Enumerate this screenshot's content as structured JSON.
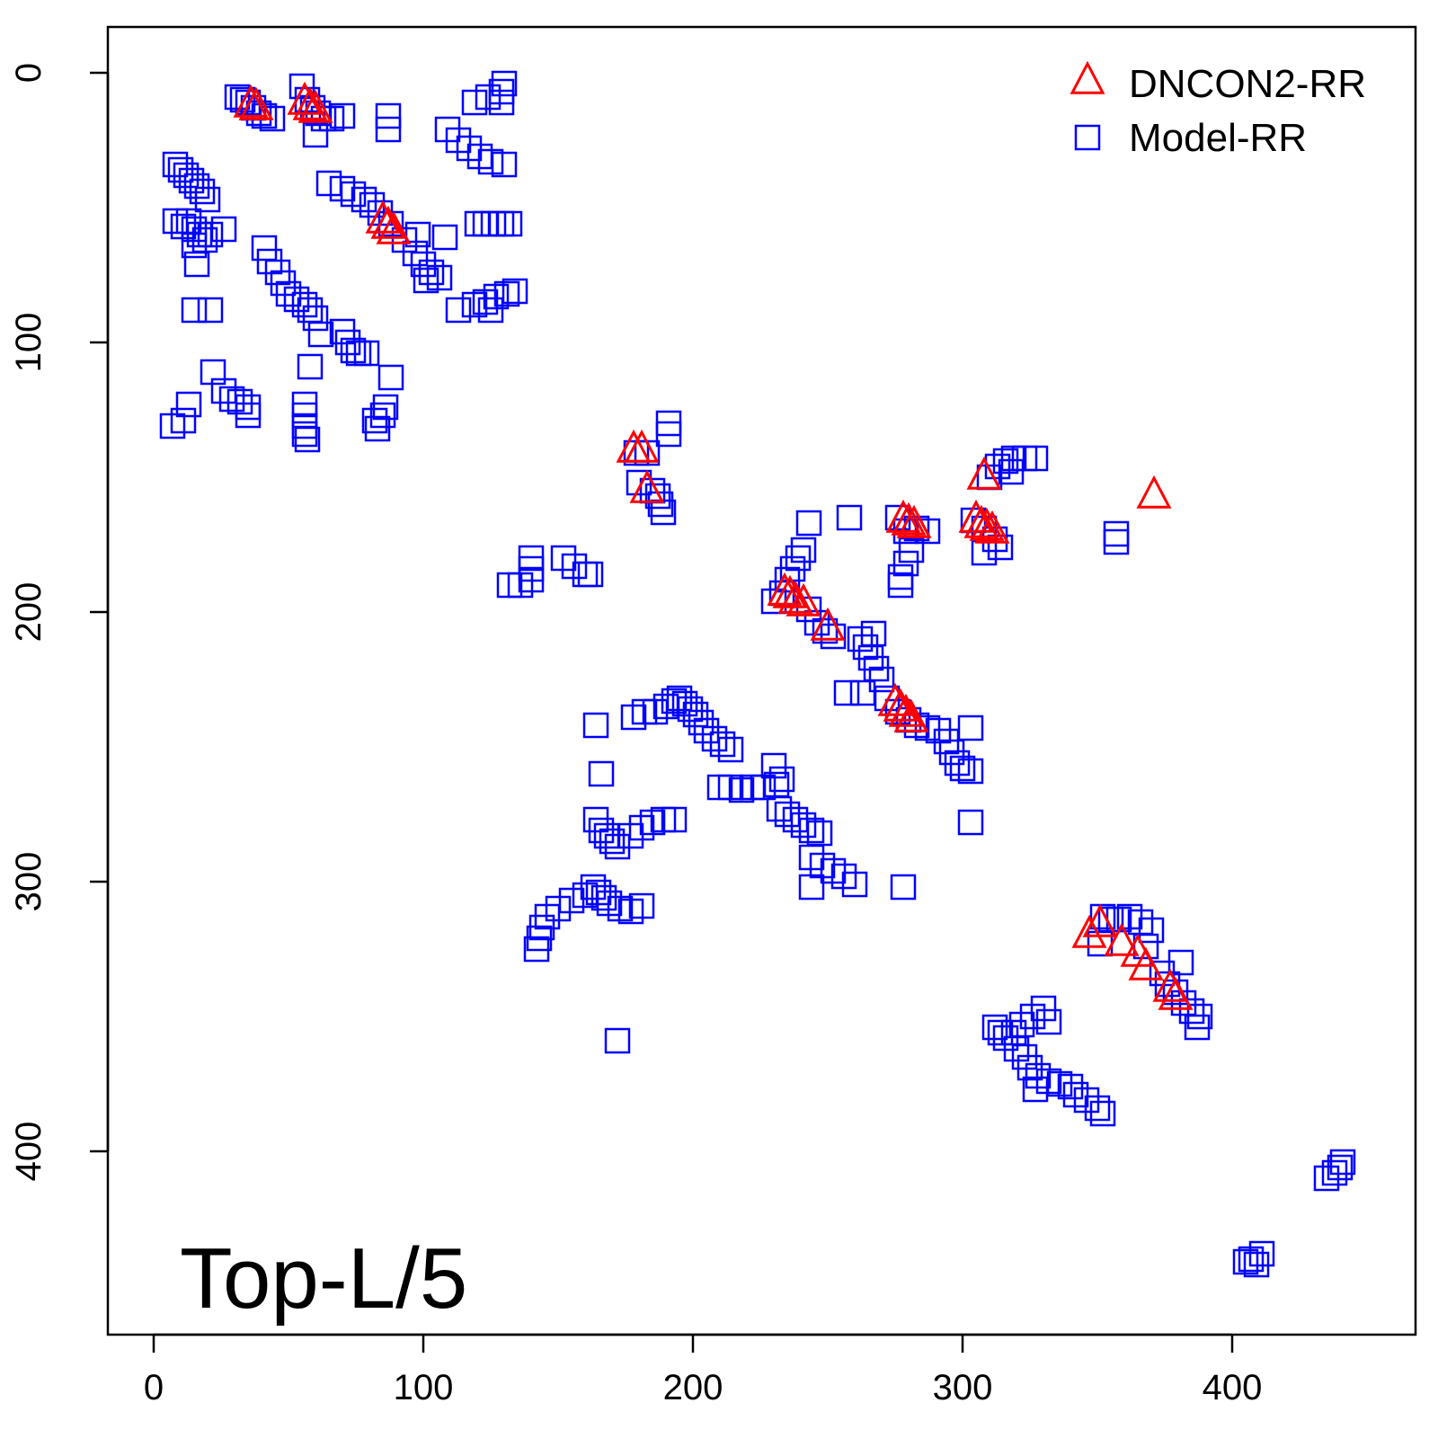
{
  "chart_data": {
    "type": "scatter",
    "title": "",
    "xlabel": "",
    "ylabel": "",
    "xlim": [
      -17,
      468
    ],
    "ylim": [
      -17,
      468
    ],
    "y_inverted": true,
    "xticks": [
      0,
      100,
      200,
      300,
      400
    ],
    "yticks": [
      0,
      100,
      200,
      300,
      400
    ],
    "grid": false,
    "legend_placement": "top-right",
    "annotation": "Top-L/5",
    "series": [
      {
        "name": "DNCON2-RR",
        "marker": "triangle-open",
        "color": "#ff0000",
        "points": [
          [
            36,
            12
          ],
          [
            38,
            13
          ],
          [
            56,
            11
          ],
          [
            58,
            13
          ],
          [
            60,
            14
          ],
          [
            85,
            55
          ],
          [
            87,
            57
          ],
          [
            89,
            59
          ],
          [
            178,
            140
          ],
          [
            181,
            140
          ],
          [
            183,
            155
          ],
          [
            234,
            193
          ],
          [
            236,
            194
          ],
          [
            238,
            196
          ],
          [
            241,
            197
          ],
          [
            250,
            206
          ],
          [
            278,
            166
          ],
          [
            280,
            167
          ],
          [
            282,
            168
          ],
          [
            275,
            234
          ],
          [
            277,
            236
          ],
          [
            279,
            238
          ],
          [
            281,
            240
          ],
          [
            305,
            166
          ],
          [
            307,
            168
          ],
          [
            309,
            169
          ],
          [
            311,
            170
          ],
          [
            308,
            150
          ],
          [
            371,
            157
          ],
          [
            347,
            320
          ],
          [
            351,
            316
          ],
          [
            359,
            323
          ],
          [
            365,
            327
          ],
          [
            368,
            332
          ],
          [
            377,
            340
          ],
          [
            379,
            343
          ]
        ]
      },
      {
        "name": "Model-RR",
        "marker": "square-open",
        "color": "#0000ff",
        "points": [
          [
            31,
            9
          ],
          [
            33,
            10
          ],
          [
            35,
            11
          ],
          [
            37,
            13
          ],
          [
            39,
            15
          ],
          [
            41,
            16
          ],
          [
            44,
            17
          ],
          [
            55,
            5
          ],
          [
            57,
            10
          ],
          [
            59,
            13
          ],
          [
            61,
            15
          ],
          [
            63,
            17
          ],
          [
            66,
            17
          ],
          [
            70,
            16
          ],
          [
            60,
            23
          ],
          [
            87,
            16
          ],
          [
            87,
            21
          ],
          [
            109,
            21
          ],
          [
            113,
            25
          ],
          [
            117,
            28
          ],
          [
            121,
            31
          ],
          [
            125,
            33
          ],
          [
            130,
            34
          ],
          [
            119,
            11
          ],
          [
            124,
            9
          ],
          [
            129,
            7
          ],
          [
            129,
            11
          ],
          [
            130,
            4
          ],
          [
            8,
            34
          ],
          [
            10,
            36
          ],
          [
            12,
            38
          ],
          [
            14,
            40
          ],
          [
            16,
            42
          ],
          [
            18,
            44
          ],
          [
            20,
            47
          ],
          [
            8,
            55
          ],
          [
            11,
            57
          ],
          [
            13,
            55
          ],
          [
            15,
            58
          ],
          [
            17,
            60
          ],
          [
            19,
            62
          ],
          [
            21,
            60
          ],
          [
            26,
            58
          ],
          [
            15,
            64
          ],
          [
            16,
            71
          ],
          [
            15,
            88
          ],
          [
            21,
            88
          ],
          [
            65,
            41
          ],
          [
            70,
            43
          ],
          [
            74,
            45
          ],
          [
            78,
            47
          ],
          [
            81,
            49
          ],
          [
            84,
            52
          ],
          [
            88,
            56
          ],
          [
            93,
            62
          ],
          [
            98,
            60
          ],
          [
            97,
            67
          ],
          [
            100,
            71
          ],
          [
            103,
            74
          ],
          [
            106,
            76
          ],
          [
            101,
            77
          ],
          [
            108,
            61
          ],
          [
            120,
            56
          ],
          [
            123,
            56
          ],
          [
            126,
            56
          ],
          [
            129,
            56
          ],
          [
            132,
            56
          ],
          [
            113,
            88
          ],
          [
            119,
            86
          ],
          [
            123,
            85
          ],
          [
            127,
            83
          ],
          [
            131,
            82
          ],
          [
            134,
            81
          ],
          [
            125,
            88
          ],
          [
            41,
            65
          ],
          [
            43,
            70
          ],
          [
            46,
            74
          ],
          [
            48,
            78
          ],
          [
            50,
            82
          ],
          [
            53,
            84
          ],
          [
            56,
            86
          ],
          [
            58,
            88
          ],
          [
            60,
            91
          ],
          [
            62,
            97
          ],
          [
            58,
            109
          ],
          [
            70,
            96
          ],
          [
            72,
            100
          ],
          [
            74,
            103
          ],
          [
            76,
            104
          ],
          [
            79,
            104
          ],
          [
            22,
            111
          ],
          [
            26,
            118
          ],
          [
            29,
            121
          ],
          [
            32,
            122
          ],
          [
            35,
            124
          ],
          [
            35,
            127
          ],
          [
            13,
            123
          ],
          [
            11,
            129
          ],
          [
            7,
            131
          ],
          [
            56,
            123
          ],
          [
            56,
            127
          ],
          [
            56,
            131
          ],
          [
            56,
            134
          ],
          [
            57,
            136
          ],
          [
            82,
            129
          ],
          [
            83,
            132
          ],
          [
            85,
            127
          ],
          [
            86,
            124
          ],
          [
            88,
            113
          ],
          [
            179,
            141
          ],
          [
            183,
            141
          ],
          [
            180,
            152
          ],
          [
            185,
            155
          ],
          [
            187,
            157
          ],
          [
            188,
            160
          ],
          [
            189,
            163
          ],
          [
            191,
            130
          ],
          [
            191,
            134
          ],
          [
            140,
            180
          ],
          [
            140,
            184
          ],
          [
            140,
            188
          ],
          [
            136,
            190
          ],
          [
            132,
            190
          ],
          [
            152,
            180
          ],
          [
            156,
            183
          ],
          [
            160,
            186
          ],
          [
            162,
            186
          ],
          [
            230,
            196
          ],
          [
            233,
            193
          ],
          [
            235,
            188
          ],
          [
            237,
            184
          ],
          [
            239,
            180
          ],
          [
            241,
            177
          ],
          [
            243,
            199
          ],
          [
            246,
            204
          ],
          [
            249,
            207
          ],
          [
            252,
            209
          ],
          [
            243,
            167
          ],
          [
            258,
            165
          ],
          [
            262,
            210
          ],
          [
            264,
            213
          ],
          [
            266,
            217
          ],
          [
            268,
            221
          ],
          [
            270,
            225
          ],
          [
            263,
            230
          ],
          [
            257,
            230
          ],
          [
            267,
            208
          ],
          [
            272,
            232
          ],
          [
            276,
            237
          ],
          [
            280,
            240
          ],
          [
            283,
            242
          ],
          [
            287,
            243
          ],
          [
            291,
            244
          ],
          [
            303,
            243
          ],
          [
            294,
            248
          ],
          [
            296,
            252
          ],
          [
            298,
            256
          ],
          [
            300,
            258
          ],
          [
            303,
            259
          ],
          [
            303,
            278
          ],
          [
            276,
            165
          ],
          [
            279,
            170
          ],
          [
            283,
            169
          ],
          [
            287,
            170
          ],
          [
            281,
            177
          ],
          [
            279,
            182
          ],
          [
            277,
            187
          ],
          [
            277,
            190
          ],
          [
            304,
            166
          ],
          [
            308,
            169
          ],
          [
            312,
            173
          ],
          [
            314,
            176
          ],
          [
            308,
            178
          ],
          [
            310,
            150
          ],
          [
            313,
            146
          ],
          [
            316,
            144
          ],
          [
            319,
            143
          ],
          [
            323,
            143
          ],
          [
            327,
            143
          ],
          [
            318,
            148
          ],
          [
            357,
            171
          ],
          [
            357,
            174
          ],
          [
            164,
            242
          ],
          [
            166,
            260
          ],
          [
            178,
            239
          ],
          [
            182,
            237
          ],
          [
            186,
            237
          ],
          [
            190,
            235
          ],
          [
            193,
            233
          ],
          [
            195,
            232
          ],
          [
            197,
            234
          ],
          [
            199,
            236
          ],
          [
            201,
            238
          ],
          [
            203,
            241
          ],
          [
            205,
            244
          ],
          [
            208,
            247
          ],
          [
            211,
            249
          ],
          [
            214,
            251
          ],
          [
            210,
            265
          ],
          [
            214,
            265
          ],
          [
            218,
            266
          ],
          [
            222,
            265
          ],
          [
            226,
            265
          ],
          [
            231,
            264
          ],
          [
            230,
            257
          ],
          [
            233,
            262
          ],
          [
            232,
            273
          ],
          [
            235,
            275
          ],
          [
            238,
            277
          ],
          [
            241,
            279
          ],
          [
            244,
            281
          ],
          [
            247,
            282
          ],
          [
            244,
            291
          ],
          [
            248,
            294
          ],
          [
            252,
            296
          ],
          [
            256,
            298
          ],
          [
            260,
            301
          ],
          [
            244,
            302
          ],
          [
            164,
            277
          ],
          [
            166,
            281
          ],
          [
            168,
            283
          ],
          [
            170,
            285
          ],
          [
            172,
            287
          ],
          [
            177,
            283
          ],
          [
            181,
            280
          ],
          [
            185,
            278
          ],
          [
            189,
            277
          ],
          [
            193,
            277
          ],
          [
            163,
            302
          ],
          [
            165,
            304
          ],
          [
            167,
            306
          ],
          [
            169,
            308
          ],
          [
            173,
            310
          ],
          [
            177,
            311
          ],
          [
            181,
            309
          ],
          [
            160,
            305
          ],
          [
            155,
            307
          ],
          [
            150,
            310
          ],
          [
            146,
            313
          ],
          [
            144,
            317
          ],
          [
            143,
            321
          ],
          [
            142,
            325
          ],
          [
            278,
            302
          ],
          [
            172,
            359
          ],
          [
            352,
            313
          ],
          [
            355,
            314
          ],
          [
            358,
            314
          ],
          [
            362,
            313
          ],
          [
            366,
            315
          ],
          [
            370,
            318
          ],
          [
            368,
            324
          ],
          [
            351,
            323
          ],
          [
            374,
            334
          ],
          [
            376,
            338
          ],
          [
            379,
            341
          ],
          [
            382,
            345
          ],
          [
            385,
            348
          ],
          [
            388,
            350
          ],
          [
            387,
            354
          ],
          [
            381,
            330
          ],
          [
            312,
            354
          ],
          [
            314,
            356
          ],
          [
            316,
            358
          ],
          [
            319,
            356
          ],
          [
            322,
            353
          ],
          [
            326,
            350
          ],
          [
            330,
            347
          ],
          [
            332,
            352
          ],
          [
            320,
            362
          ],
          [
            323,
            365
          ],
          [
            325,
            369
          ],
          [
            328,
            372
          ],
          [
            332,
            374
          ],
          [
            336,
            375
          ],
          [
            340,
            376
          ],
          [
            342,
            379
          ],
          [
            346,
            381
          ],
          [
            350,
            384
          ],
          [
            352,
            386
          ],
          [
            327,
            377
          ],
          [
            441,
            404
          ],
          [
            440,
            406
          ],
          [
            438,
            408
          ],
          [
            435,
            410
          ],
          [
            405,
            441
          ],
          [
            407,
            440
          ],
          [
            409,
            442
          ],
          [
            411,
            438
          ]
        ]
      }
    ]
  }
}
